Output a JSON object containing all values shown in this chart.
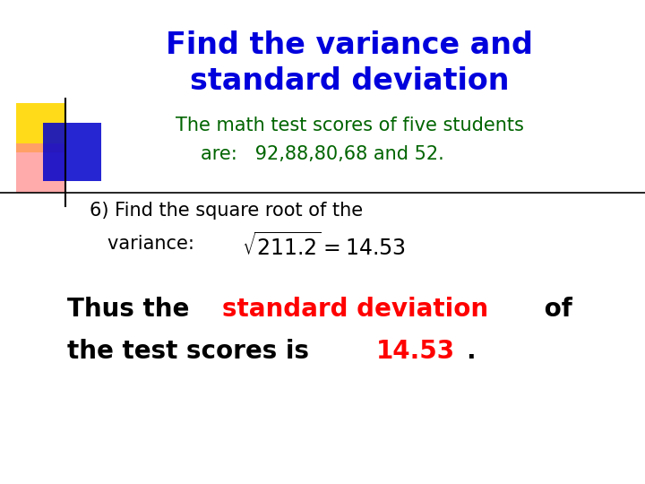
{
  "title_line1": "Find the variance and",
  "title_line2": "standard deviation",
  "title_color": "#0000DD",
  "subtitle_line1": "The math test scores of five students",
  "subtitle_line2": "are:   92,88,80,68 and 52.",
  "subtitle_color": "#006400",
  "step6_line1": "6) Find the square root of the",
  "step6_line2": "variance: ",
  "step6_color": "#000000",
  "conclusion_black_color": "#000000",
  "conclusion_red_color": "#FF0000",
  "bg_color": "#FFFFFF",
  "separator_color": "#000000",
  "square1_color": "#FFD700",
  "square2_color": "#FF8888",
  "square3_color": "#0000CC",
  "fig_width": 7.2,
  "fig_height": 5.4,
  "dpi": 100
}
